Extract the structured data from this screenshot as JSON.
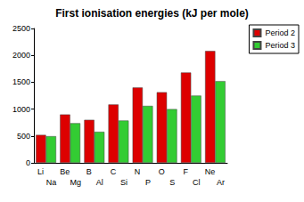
{
  "chart_data": {
    "type": "bar",
    "title": "First ionisation energies (kJ per mole)",
    "categories": [
      "Li\nNa",
      "Be\nMg",
      "B\nAl",
      "C\nSi",
      "N\nP",
      "O\nS",
      "F\nCl",
      "Ne\nAr"
    ],
    "series": [
      {
        "name": "Period 2",
        "color": "#dd0000",
        "values": [
          520,
          900,
          800,
          1086,
          1402,
          1314,
          1681,
          2081
        ]
      },
      {
        "name": "Period 3",
        "color": "#33cc33",
        "values": [
          496,
          738,
          578,
          787,
          1060,
          1000,
          1251,
          1521
        ]
      }
    ],
    "ylim": [
      0,
      2500
    ],
    "yticks": [
      0,
      500,
      1000,
      1500,
      2000,
      2500
    ],
    "grid": false,
    "legend": "top-right"
  }
}
